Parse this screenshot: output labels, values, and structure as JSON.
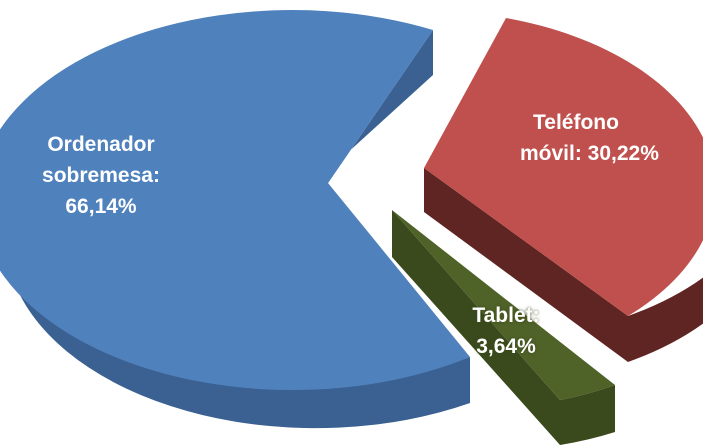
{
  "chart_data": {
    "type": "pie",
    "style": "3d-exploded",
    "title": "",
    "slices": [
      {
        "name": "Ordenador sobremesa",
        "value": 66.14,
        "label_lines": [
          "Ordenador",
          "sobremesa:",
          "66,14%"
        ],
        "color": "#4f81bd",
        "side_color": "#3a6192"
      },
      {
        "name": "Teléfono móvil",
        "value": 30.22,
        "label_lines": [
          "Teléfono",
          "móvil: 30,22%"
        ],
        "color": "#c0504d",
        "side_color": "#5f2522"
      },
      {
        "name": "Tablet",
        "value": 3.64,
        "label_lines": [
          "Tablet:",
          "3,64%"
        ],
        "color": "#4f6228",
        "side_color": "#3a4a1c"
      }
    ]
  }
}
